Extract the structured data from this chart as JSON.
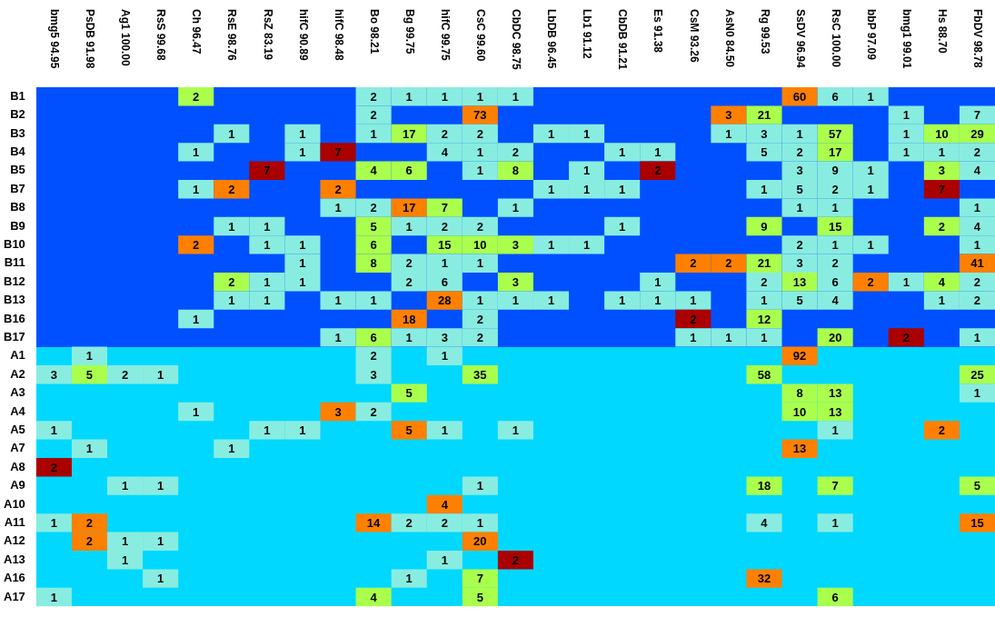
{
  "chart_data": {
    "type": "heatmap",
    "data_labels": true,
    "categories": [
      "bmg5 94.95",
      "PsDB 91.98",
      "Ag1 100.00",
      "RsS 99.68",
      "Ch 96.47",
      "RsE 98.76",
      "RsZ 83.19",
      "hifC 90.89",
      "hifC 98.48",
      "Bo 98.21",
      "Bg 99.75",
      "hifC 99.75",
      "CsC 99.60",
      "CbDC 98.75",
      "LbDB 96.45",
      "Lb1 91.12",
      "CbDB 91.21",
      "Es 91.38",
      "CsM 93.26",
      "AsN0 84.50",
      "Rg 99.53",
      "SsDV 96.94",
      "RsC 100.00",
      "bbP 97.09",
      "bmg1 99.01",
      "Hs 88.70",
      "FbDV 98.78"
    ],
    "y_categories": [
      "B1",
      "B2",
      "B3",
      "B4",
      "B5",
      "B7",
      "B8",
      "B9",
      "B10",
      "B11",
      "B12",
      "B13",
      "B16",
      "B17",
      "A1",
      "A2",
      "A3",
      "A4",
      "A5",
      "A7",
      "A8",
      "A9",
      "A10",
      "A11",
      "A12",
      "A13",
      "A16",
      "A17"
    ],
    "cells": [
      [
        null,
        null,
        null,
        null,
        2,
        null,
        null,
        null,
        null,
        2,
        1,
        1,
        1,
        1,
        null,
        null,
        null,
        null,
        null,
        null,
        null,
        60,
        6,
        1,
        null,
        null,
        null
      ],
      [
        null,
        null,
        null,
        null,
        null,
        null,
        null,
        null,
        null,
        2,
        null,
        null,
        73,
        null,
        null,
        null,
        null,
        null,
        null,
        3,
        21,
        null,
        null,
        null,
        1,
        null,
        7
      ],
      [
        null,
        null,
        null,
        null,
        null,
        1,
        null,
        1,
        null,
        1,
        17,
        2,
        2,
        null,
        1,
        1,
        null,
        null,
        null,
        1,
        3,
        1,
        57,
        null,
        1,
        10,
        29
      ],
      [
        null,
        null,
        null,
        null,
        1,
        null,
        null,
        1,
        7,
        null,
        null,
        4,
        1,
        2,
        null,
        null,
        1,
        1,
        null,
        null,
        5,
        2,
        17,
        null,
        1,
        1,
        2
      ],
      [
        null,
        null,
        null,
        null,
        null,
        null,
        7,
        null,
        null,
        4,
        6,
        null,
        1,
        8,
        null,
        1,
        null,
        2,
        null,
        null,
        null,
        3,
        9,
        1,
        null,
        3,
        4
      ],
      [
        null,
        null,
        null,
        null,
        1,
        2,
        null,
        null,
        2,
        null,
        null,
        null,
        null,
        null,
        1,
        1,
        1,
        null,
        null,
        null,
        1,
        5,
        2,
        1,
        null,
        7,
        null
      ],
      [
        null,
        null,
        null,
        null,
        null,
        null,
        null,
        null,
        1,
        2,
        17,
        7,
        null,
        1,
        null,
        null,
        null,
        null,
        null,
        null,
        null,
        1,
        1,
        null,
        null,
        null,
        1
      ],
      [
        null,
        null,
        null,
        null,
        null,
        1,
        1,
        null,
        null,
        5,
        1,
        2,
        2,
        null,
        null,
        null,
        1,
        null,
        null,
        null,
        9,
        null,
        15,
        null,
        null,
        2,
        4
      ],
      [
        null,
        null,
        null,
        null,
        2,
        null,
        1,
        1,
        null,
        6,
        null,
        15,
        10,
        3,
        1,
        1,
        null,
        null,
        null,
        null,
        null,
        2,
        1,
        1,
        null,
        null,
        1
      ],
      [
        null,
        null,
        null,
        null,
        null,
        null,
        null,
        1,
        null,
        8,
        2,
        1,
        1,
        null,
        null,
        null,
        null,
        null,
        2,
        2,
        21,
        3,
        2,
        null,
        null,
        null,
        41
      ],
      [
        null,
        null,
        null,
        null,
        null,
        2,
        1,
        1,
        null,
        null,
        2,
        6,
        null,
        3,
        null,
        null,
        null,
        1,
        null,
        null,
        2,
        13,
        6,
        2,
        1,
        4,
        2
      ],
      [
        null,
        null,
        null,
        null,
        null,
        1,
        1,
        null,
        1,
        1,
        null,
        28,
        1,
        1,
        1,
        null,
        1,
        1,
        1,
        null,
        1,
        5,
        4,
        null,
        null,
        1,
        2
      ],
      [
        null,
        null,
        null,
        null,
        1,
        null,
        null,
        null,
        null,
        null,
        18,
        null,
        2,
        null,
        null,
        null,
        null,
        null,
        2,
        null,
        12,
        null,
        null,
        null,
        null,
        null,
        null
      ],
      [
        null,
        null,
        null,
        null,
        null,
        null,
        null,
        null,
        1,
        6,
        1,
        3,
        2,
        null,
        null,
        null,
        null,
        null,
        1,
        1,
        1,
        null,
        20,
        null,
        2,
        null,
        1
      ],
      [
        null,
        1,
        null,
        null,
        null,
        null,
        null,
        null,
        null,
        2,
        null,
        1,
        null,
        null,
        null,
        null,
        null,
        null,
        null,
        null,
        null,
        92,
        null,
        null,
        null,
        null,
        null
      ],
      [
        3,
        5,
        2,
        1,
        null,
        null,
        null,
        null,
        null,
        3,
        null,
        null,
        35,
        null,
        null,
        null,
        null,
        null,
        null,
        null,
        58,
        null,
        null,
        null,
        null,
        null,
        25
      ],
      [
        null,
        null,
        null,
        null,
        null,
        null,
        null,
        null,
        null,
        null,
        5,
        null,
        null,
        null,
        null,
        null,
        null,
        null,
        null,
        null,
        null,
        8,
        13,
        null,
        null,
        null,
        1
      ],
      [
        null,
        null,
        null,
        null,
        1,
        null,
        null,
        null,
        3,
        2,
        null,
        null,
        null,
        null,
        null,
        null,
        null,
        null,
        null,
        null,
        null,
        10,
        13,
        null,
        null,
        null,
        null
      ],
      [
        1,
        null,
        null,
        null,
        null,
        null,
        1,
        1,
        null,
        null,
        5,
        1,
        null,
        1,
        null,
        null,
        null,
        null,
        null,
        null,
        null,
        null,
        1,
        null,
        null,
        2,
        null
      ],
      [
        null,
        1,
        null,
        null,
        null,
        1,
        null,
        null,
        null,
        null,
        null,
        null,
        null,
        null,
        null,
        null,
        null,
        null,
        null,
        null,
        null,
        13,
        null,
        null,
        null,
        null,
        null
      ],
      [
        2,
        null,
        null,
        null,
        null,
        null,
        null,
        null,
        null,
        null,
        null,
        null,
        null,
        null,
        null,
        null,
        null,
        null,
        null,
        null,
        null,
        null,
        null,
        null,
        null,
        null,
        null
      ],
      [
        null,
        null,
        1,
        1,
        null,
        null,
        null,
        null,
        null,
        null,
        null,
        null,
        1,
        null,
        null,
        null,
        null,
        null,
        null,
        null,
        18,
        null,
        7,
        null,
        null,
        null,
        5
      ],
      [
        null,
        null,
        null,
        null,
        null,
        null,
        null,
        null,
        null,
        null,
        null,
        4,
        null,
        null,
        null,
        null,
        null,
        null,
        null,
        null,
        null,
        null,
        null,
        null,
        null,
        null,
        null
      ],
      [
        1,
        2,
        null,
        null,
        null,
        null,
        null,
        null,
        null,
        14,
        2,
        2,
        1,
        null,
        null,
        null,
        null,
        null,
        null,
        null,
        4,
        null,
        1,
        null,
        null,
        null,
        15
      ],
      [
        null,
        2,
        1,
        1,
        null,
        null,
        null,
        null,
        null,
        null,
        null,
        null,
        20,
        null,
        null,
        null,
        null,
        null,
        null,
        null,
        null,
        null,
        null,
        null,
        null,
        null,
        null
      ],
      [
        null,
        null,
        1,
        null,
        null,
        null,
        null,
        null,
        null,
        null,
        null,
        1,
        null,
        2,
        null,
        null,
        null,
        null,
        null,
        null,
        null,
        null,
        null,
        null,
        null,
        null,
        null
      ],
      [
        null,
        null,
        null,
        1,
        null,
        null,
        null,
        null,
        null,
        null,
        1,
        null,
        7,
        null,
        null,
        null,
        null,
        null,
        null,
        null,
        32,
        null,
        null,
        null,
        null,
        null,
        null
      ],
      [
        1,
        null,
        null,
        null,
        null,
        null,
        null,
        null,
        null,
        4,
        null,
        null,
        5,
        null,
        null,
        null,
        null,
        null,
        null,
        null,
        null,
        null,
        6,
        null,
        null,
        null,
        null
      ]
    ],
    "colors": [
      [
        "#0050ff",
        "#0050ff",
        "#0050ff",
        "#0050ff",
        "#aaff4d",
        "#0050ff",
        "#0050ff",
        "#0050ff",
        "#0050ff",
        "#88ede0",
        "#88ede0",
        "#88ede0",
        "#88ede0",
        "#88ede0",
        "#0050ff",
        "#0050ff",
        "#0050ff",
        "#0050ff",
        "#0050ff",
        "#0050ff",
        "#0050ff",
        "#ff8000",
        "#88ede0",
        "#88ede0",
        "#0050ff",
        "#0050ff",
        "#0050ff"
      ],
      [
        "#0050ff",
        "#0050ff",
        "#0050ff",
        "#0050ff",
        "#0050ff",
        "#0050ff",
        "#0050ff",
        "#0050ff",
        "#0050ff",
        "#88ede0",
        "#0050ff",
        "#0050ff",
        "#ff8000",
        "#0050ff",
        "#0050ff",
        "#0050ff",
        "#0050ff",
        "#0050ff",
        "#0050ff",
        "#ff8000",
        "#aaff4d",
        "#0050ff",
        "#0050ff",
        "#0050ff",
        "#88ede0",
        "#0050ff",
        "#88ede0"
      ],
      [
        "#0050ff",
        "#0050ff",
        "#0050ff",
        "#0050ff",
        "#0050ff",
        "#88ede0",
        "#0050ff",
        "#88ede0",
        "#0050ff",
        "#88ede0",
        "#aaff4d",
        "#88ede0",
        "#88ede0",
        "#0050ff",
        "#88ede0",
        "#88ede0",
        "#0050ff",
        "#0050ff",
        "#0050ff",
        "#88ede0",
        "#88ede0",
        "#88ede0",
        "#aaff4d",
        "#0050ff",
        "#88ede0",
        "#aaff4d",
        "#aaff4d"
      ],
      [
        "#0050ff",
        "#0050ff",
        "#0050ff",
        "#0050ff",
        "#88ede0",
        "#0050ff",
        "#0050ff",
        "#88ede0",
        "#aa0000",
        "#0050ff",
        "#0050ff",
        "#88ede0",
        "#88ede0",
        "#88ede0",
        "#0050ff",
        "#0050ff",
        "#88ede0",
        "#88ede0",
        "#0050ff",
        "#0050ff",
        "#88ede0",
        "#88ede0",
        "#aaff4d",
        "#0050ff",
        "#88ede0",
        "#88ede0",
        "#88ede0"
      ],
      [
        "#0050ff",
        "#0050ff",
        "#0050ff",
        "#0050ff",
        "#0050ff",
        "#0050ff",
        "#aa0000",
        "#0050ff",
        "#0050ff",
        "#aaff4d",
        "#aaff4d",
        "#0050ff",
        "#88ede0",
        "#aaff4d",
        "#0050ff",
        "#88ede0",
        "#0050ff",
        "#aa0000",
        "#0050ff",
        "#0050ff",
        "#0050ff",
        "#88ede0",
        "#88ede0",
        "#88ede0",
        "#0050ff",
        "#aaff4d",
        "#88ede0"
      ],
      [
        "#0050ff",
        "#0050ff",
        "#0050ff",
        "#0050ff",
        "#88ede0",
        "#ff8000",
        "#0050ff",
        "#0050ff",
        "#ff8000",
        "#0050ff",
        "#0050ff",
        "#0050ff",
        "#0050ff",
        "#0050ff",
        "#88ede0",
        "#88ede0",
        "#88ede0",
        "#0050ff",
        "#0050ff",
        "#0050ff",
        "#88ede0",
        "#88ede0",
        "#88ede0",
        "#88ede0",
        "#0050ff",
        "#aa0000",
        "#0050ff"
      ],
      [
        "#0050ff",
        "#0050ff",
        "#0050ff",
        "#0050ff",
        "#0050ff",
        "#0050ff",
        "#0050ff",
        "#0050ff",
        "#88ede0",
        "#88ede0",
        "#ff8000",
        "#aaff4d",
        "#0050ff",
        "#88ede0",
        "#0050ff",
        "#0050ff",
        "#0050ff",
        "#0050ff",
        "#0050ff",
        "#0050ff",
        "#0050ff",
        "#88ede0",
        "#88ede0",
        "#0050ff",
        "#0050ff",
        "#0050ff",
        "#88ede0"
      ],
      [
        "#0050ff",
        "#0050ff",
        "#0050ff",
        "#0050ff",
        "#0050ff",
        "#88ede0",
        "#88ede0",
        "#0050ff",
        "#0050ff",
        "#aaff4d",
        "#88ede0",
        "#88ede0",
        "#88ede0",
        "#0050ff",
        "#0050ff",
        "#0050ff",
        "#88ede0",
        "#0050ff",
        "#0050ff",
        "#0050ff",
        "#aaff4d",
        "#0050ff",
        "#aaff4d",
        "#0050ff",
        "#0050ff",
        "#aaff4d",
        "#88ede0"
      ],
      [
        "#0050ff",
        "#0050ff",
        "#0050ff",
        "#0050ff",
        "#ff8000",
        "#0050ff",
        "#88ede0",
        "#88ede0",
        "#0050ff",
        "#aaff4d",
        "#0050ff",
        "#aaff4d",
        "#aaff4d",
        "#aaff4d",
        "#88ede0",
        "#88ede0",
        "#0050ff",
        "#0050ff",
        "#0050ff",
        "#0050ff",
        "#0050ff",
        "#88ede0",
        "#88ede0",
        "#88ede0",
        "#0050ff",
        "#0050ff",
        "#88ede0"
      ],
      [
        "#0050ff",
        "#0050ff",
        "#0050ff",
        "#0050ff",
        "#0050ff",
        "#0050ff",
        "#0050ff",
        "#88ede0",
        "#0050ff",
        "#aaff4d",
        "#88ede0",
        "#88ede0",
        "#88ede0",
        "#0050ff",
        "#0050ff",
        "#0050ff",
        "#0050ff",
        "#0050ff",
        "#ff8000",
        "#ff8000",
        "#aaff4d",
        "#88ede0",
        "#88ede0",
        "#0050ff",
        "#0050ff",
        "#0050ff",
        "#ff8000"
      ],
      [
        "#0050ff",
        "#0050ff",
        "#0050ff",
        "#0050ff",
        "#0050ff",
        "#aaff4d",
        "#88ede0",
        "#88ede0",
        "#0050ff",
        "#0050ff",
        "#88ede0",
        "#88ede0",
        "#0050ff",
        "#aaff4d",
        "#0050ff",
        "#0050ff",
        "#0050ff",
        "#88ede0",
        "#0050ff",
        "#0050ff",
        "#88ede0",
        "#aaff4d",
        "#88ede0",
        "#ff8000",
        "#88ede0",
        "#aaff4d",
        "#88ede0"
      ],
      [
        "#0050ff",
        "#0050ff",
        "#0050ff",
        "#0050ff",
        "#0050ff",
        "#88ede0",
        "#88ede0",
        "#0050ff",
        "#88ede0",
        "#88ede0",
        "#0050ff",
        "#ff8000",
        "#88ede0",
        "#88ede0",
        "#88ede0",
        "#0050ff",
        "#88ede0",
        "#88ede0",
        "#88ede0",
        "#0050ff",
        "#88ede0",
        "#88ede0",
        "#88ede0",
        "#0050ff",
        "#0050ff",
        "#88ede0",
        "#88ede0"
      ],
      [
        "#0050ff",
        "#0050ff",
        "#0050ff",
        "#0050ff",
        "#88ede0",
        "#0050ff",
        "#0050ff",
        "#0050ff",
        "#0050ff",
        "#0050ff",
        "#ff8000",
        "#0050ff",
        "#88ede0",
        "#0050ff",
        "#0050ff",
        "#0050ff",
        "#0050ff",
        "#0050ff",
        "#aa0000",
        "#0050ff",
        "#aaff4d",
        "#0050ff",
        "#0050ff",
        "#0050ff",
        "#0050ff",
        "#0050ff",
        "#0050ff"
      ],
      [
        "#0050ff",
        "#0050ff",
        "#0050ff",
        "#0050ff",
        "#0050ff",
        "#0050ff",
        "#0050ff",
        "#0050ff",
        "#88ede0",
        "#aaff4d",
        "#88ede0",
        "#88ede0",
        "#88ede0",
        "#0050ff",
        "#0050ff",
        "#0050ff",
        "#0050ff",
        "#0050ff",
        "#88ede0",
        "#88ede0",
        "#88ede0",
        "#0050ff",
        "#aaff4d",
        "#0050ff",
        "#aa0000",
        "#0050ff",
        "#88ede0"
      ],
      [
        "#00d8ff",
        "#88ede0",
        "#00d8ff",
        "#00d8ff",
        "#00d8ff",
        "#00d8ff",
        "#00d8ff",
        "#00d8ff",
        "#00d8ff",
        "#88ede0",
        "#00d8ff",
        "#88ede0",
        "#00d8ff",
        "#00d8ff",
        "#00d8ff",
        "#00d8ff",
        "#00d8ff",
        "#00d8ff",
        "#00d8ff",
        "#00d8ff",
        "#00d8ff",
        "#ff8000",
        "#00d8ff",
        "#00d8ff",
        "#00d8ff",
        "#00d8ff",
        "#00d8ff"
      ],
      [
        "#88ede0",
        "#aaff4d",
        "#88ede0",
        "#88ede0",
        "#00d8ff",
        "#00d8ff",
        "#00d8ff",
        "#00d8ff",
        "#00d8ff",
        "#88ede0",
        "#00d8ff",
        "#00d8ff",
        "#aaff4d",
        "#00d8ff",
        "#00d8ff",
        "#00d8ff",
        "#00d8ff",
        "#00d8ff",
        "#00d8ff",
        "#00d8ff",
        "#aaff4d",
        "#00d8ff",
        "#00d8ff",
        "#00d8ff",
        "#00d8ff",
        "#00d8ff",
        "#aaff4d"
      ],
      [
        "#00d8ff",
        "#00d8ff",
        "#00d8ff",
        "#00d8ff",
        "#00d8ff",
        "#00d8ff",
        "#00d8ff",
        "#00d8ff",
        "#00d8ff",
        "#00d8ff",
        "#aaff4d",
        "#00d8ff",
        "#00d8ff",
        "#00d8ff",
        "#00d8ff",
        "#00d8ff",
        "#00d8ff",
        "#00d8ff",
        "#00d8ff",
        "#00d8ff",
        "#00d8ff",
        "#aaff4d",
        "#aaff4d",
        "#00d8ff",
        "#00d8ff",
        "#00d8ff",
        "#88ede0"
      ],
      [
        "#00d8ff",
        "#00d8ff",
        "#00d8ff",
        "#00d8ff",
        "#88ede0",
        "#00d8ff",
        "#00d8ff",
        "#00d8ff",
        "#ff8000",
        "#88ede0",
        "#00d8ff",
        "#00d8ff",
        "#00d8ff",
        "#00d8ff",
        "#00d8ff",
        "#00d8ff",
        "#00d8ff",
        "#00d8ff",
        "#00d8ff",
        "#00d8ff",
        "#00d8ff",
        "#aaff4d",
        "#aaff4d",
        "#00d8ff",
        "#00d8ff",
        "#00d8ff",
        "#00d8ff"
      ],
      [
        "#88ede0",
        "#00d8ff",
        "#00d8ff",
        "#00d8ff",
        "#00d8ff",
        "#00d8ff",
        "#88ede0",
        "#88ede0",
        "#00d8ff",
        "#00d8ff",
        "#ff8000",
        "#88ede0",
        "#00d8ff",
        "#88ede0",
        "#00d8ff",
        "#00d8ff",
        "#00d8ff",
        "#00d8ff",
        "#00d8ff",
        "#00d8ff",
        "#00d8ff",
        "#00d8ff",
        "#88ede0",
        "#00d8ff",
        "#00d8ff",
        "#ff8000",
        "#00d8ff"
      ],
      [
        "#00d8ff",
        "#88ede0",
        "#00d8ff",
        "#00d8ff",
        "#00d8ff",
        "#88ede0",
        "#00d8ff",
        "#00d8ff",
        "#00d8ff",
        "#00d8ff",
        "#00d8ff",
        "#00d8ff",
        "#00d8ff",
        "#00d8ff",
        "#00d8ff",
        "#00d8ff",
        "#00d8ff",
        "#00d8ff",
        "#00d8ff",
        "#00d8ff",
        "#00d8ff",
        "#ff8000",
        "#00d8ff",
        "#00d8ff",
        "#00d8ff",
        "#00d8ff",
        "#00d8ff"
      ],
      [
        "#aa0000",
        "#00d8ff",
        "#00d8ff",
        "#00d8ff",
        "#00d8ff",
        "#00d8ff",
        "#00d8ff",
        "#00d8ff",
        "#00d8ff",
        "#00d8ff",
        "#00d8ff",
        "#00d8ff",
        "#00d8ff",
        "#00d8ff",
        "#00d8ff",
        "#00d8ff",
        "#00d8ff",
        "#00d8ff",
        "#00d8ff",
        "#00d8ff",
        "#00d8ff",
        "#00d8ff",
        "#00d8ff",
        "#00d8ff",
        "#00d8ff",
        "#00d8ff",
        "#00d8ff"
      ],
      [
        "#00d8ff",
        "#00d8ff",
        "#88ede0",
        "#88ede0",
        "#00d8ff",
        "#00d8ff",
        "#00d8ff",
        "#00d8ff",
        "#00d8ff",
        "#00d8ff",
        "#00d8ff",
        "#00d8ff",
        "#88ede0",
        "#00d8ff",
        "#00d8ff",
        "#00d8ff",
        "#00d8ff",
        "#00d8ff",
        "#00d8ff",
        "#00d8ff",
        "#aaff4d",
        "#00d8ff",
        "#aaff4d",
        "#00d8ff",
        "#00d8ff",
        "#00d8ff",
        "#aaff4d"
      ],
      [
        "#00d8ff",
        "#00d8ff",
        "#00d8ff",
        "#00d8ff",
        "#00d8ff",
        "#00d8ff",
        "#00d8ff",
        "#00d8ff",
        "#00d8ff",
        "#00d8ff",
        "#00d8ff",
        "#ff8000",
        "#00d8ff",
        "#00d8ff",
        "#00d8ff",
        "#00d8ff",
        "#00d8ff",
        "#00d8ff",
        "#00d8ff",
        "#00d8ff",
        "#00d8ff",
        "#00d8ff",
        "#00d8ff",
        "#00d8ff",
        "#00d8ff",
        "#00d8ff",
        "#00d8ff"
      ],
      [
        "#88ede0",
        "#ff8000",
        "#00d8ff",
        "#00d8ff",
        "#00d8ff",
        "#00d8ff",
        "#00d8ff",
        "#00d8ff",
        "#00d8ff",
        "#ff8000",
        "#88ede0",
        "#88ede0",
        "#88ede0",
        "#00d8ff",
        "#00d8ff",
        "#00d8ff",
        "#00d8ff",
        "#00d8ff",
        "#00d8ff",
        "#00d8ff",
        "#88ede0",
        "#00d8ff",
        "#88ede0",
        "#00d8ff",
        "#00d8ff",
        "#00d8ff",
        "#ff8000"
      ],
      [
        "#00d8ff",
        "#ff8000",
        "#88ede0",
        "#88ede0",
        "#00d8ff",
        "#00d8ff",
        "#00d8ff",
        "#00d8ff",
        "#00d8ff",
        "#00d8ff",
        "#00d8ff",
        "#00d8ff",
        "#ff8000",
        "#00d8ff",
        "#00d8ff",
        "#00d8ff",
        "#00d8ff",
        "#00d8ff",
        "#00d8ff",
        "#00d8ff",
        "#00d8ff",
        "#00d8ff",
        "#00d8ff",
        "#00d8ff",
        "#00d8ff",
        "#00d8ff",
        "#00d8ff"
      ],
      [
        "#00d8ff",
        "#00d8ff",
        "#88ede0",
        "#00d8ff",
        "#00d8ff",
        "#00d8ff",
        "#00d8ff",
        "#00d8ff",
        "#00d8ff",
        "#00d8ff",
        "#00d8ff",
        "#88ede0",
        "#00d8ff",
        "#aa0000",
        "#00d8ff",
        "#00d8ff",
        "#00d8ff",
        "#00d8ff",
        "#00d8ff",
        "#00d8ff",
        "#00d8ff",
        "#00d8ff",
        "#00d8ff",
        "#00d8ff",
        "#00d8ff",
        "#00d8ff",
        "#00d8ff"
      ],
      [
        "#00d8ff",
        "#00d8ff",
        "#00d8ff",
        "#88ede0",
        "#00d8ff",
        "#00d8ff",
        "#00d8ff",
        "#00d8ff",
        "#00d8ff",
        "#00d8ff",
        "#88ede0",
        "#00d8ff",
        "#aaff4d",
        "#00d8ff",
        "#00d8ff",
        "#00d8ff",
        "#00d8ff",
        "#00d8ff",
        "#00d8ff",
        "#00d8ff",
        "#ff8000",
        "#00d8ff",
        "#00d8ff",
        "#00d8ff",
        "#00d8ff",
        "#00d8ff",
        "#00d8ff"
      ],
      [
        "#88ede0",
        "#00d8ff",
        "#00d8ff",
        "#00d8ff",
        "#00d8ff",
        "#00d8ff",
        "#00d8ff",
        "#00d8ff",
        "#00d8ff",
        "#aaff4d",
        "#00d8ff",
        "#00d8ff",
        "#aaff4d",
        "#00d8ff",
        "#00d8ff",
        "#00d8ff",
        "#00d8ff",
        "#00d8ff",
        "#00d8ff",
        "#00d8ff",
        "#00d8ff",
        "#00d8ff",
        "#aaff4d",
        "#00d8ff",
        "#00d8ff",
        "#00d8ff",
        "#00d8ff"
      ]
    ]
  }
}
